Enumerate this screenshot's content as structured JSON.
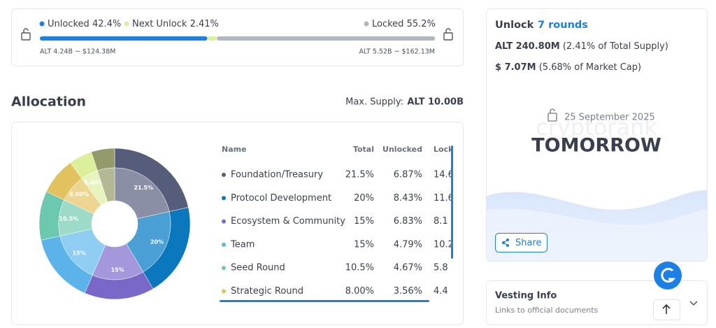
{
  "unlock_bar": {
    "segments": [
      {
        "name": "Unlocked",
        "value": 42.4,
        "label": "42.4%",
        "color": "#1b7fe6"
      },
      {
        "name": "Next Unlock",
        "value": 2.41,
        "label": "2.41%",
        "color": "#dcef9a"
      },
      {
        "name": "Locked",
        "value": 55.2,
        "label": "55.2%",
        "color": "#b2b6c0"
      }
    ],
    "left_caption": "ALT 4.24B ~ $124.38M",
    "right_caption": "ALT 5.52B ~ $162.13M"
  },
  "allocation": {
    "title": "Allocation",
    "max_supply_label": "Max. Supply:",
    "max_supply": "ALT 10.00B",
    "table": {
      "columns": [
        "Name",
        "Total",
        "Unlocked",
        "Lock"
      ],
      "rows": [
        [
          "Foundation/Treasury",
          "21.5%",
          "6.87%",
          "14.6"
        ],
        [
          "Protocol Development",
          "20%",
          "8.43%",
          "11.6"
        ],
        [
          "Ecosystem & Community",
          "15%",
          "6.83%",
          "8.1"
        ],
        [
          "Team",
          "15%",
          "4.79%",
          "10.2"
        ],
        [
          "Seed Round",
          "10.5%",
          "4.67%",
          "5.8"
        ],
        [
          "Strategic Round",
          "8.00%",
          "3.56%",
          "4.4"
        ]
      ]
    }
  },
  "chart_data": {
    "type": "pie",
    "values": [
      21.5,
      20,
      15,
      15,
      10.5,
      8,
      5,
      5
    ],
    "value_labels": [
      "21.5%",
      "20%",
      "15%",
      "15%",
      "10.5%",
      "8.00%",
      "5.00%",
      null
    ],
    "colors": [
      "#565d7b",
      "#0b77bd",
      "#7a68c8",
      "#5bb3ea",
      "#6cc8ae",
      "#e2c25e",
      "#dcef9a",
      "#949a6a"
    ],
    "inner_colors": [
      "#8a8fa6",
      "#4aa0d4",
      "#a497dc",
      "#8fcdf2",
      "#9ddbc8",
      "#ecd692",
      "#e8f4bd",
      "#b4b894"
    ]
  },
  "unlock_panel": {
    "title": "Unlock",
    "rounds": "7 rounds",
    "amount": "ALT 240.80M",
    "amount_note": "(2.41% of Total Supply)",
    "value": "$ 7.07M",
    "value_note": "(5.68% of Market Cap)",
    "watermark": "cryptorank",
    "date": "25 September 2025",
    "when": "TOMORROW",
    "share": "Share"
  },
  "vesting": {
    "title": "Vesting Info",
    "subtitle": "Links to official documents"
  }
}
